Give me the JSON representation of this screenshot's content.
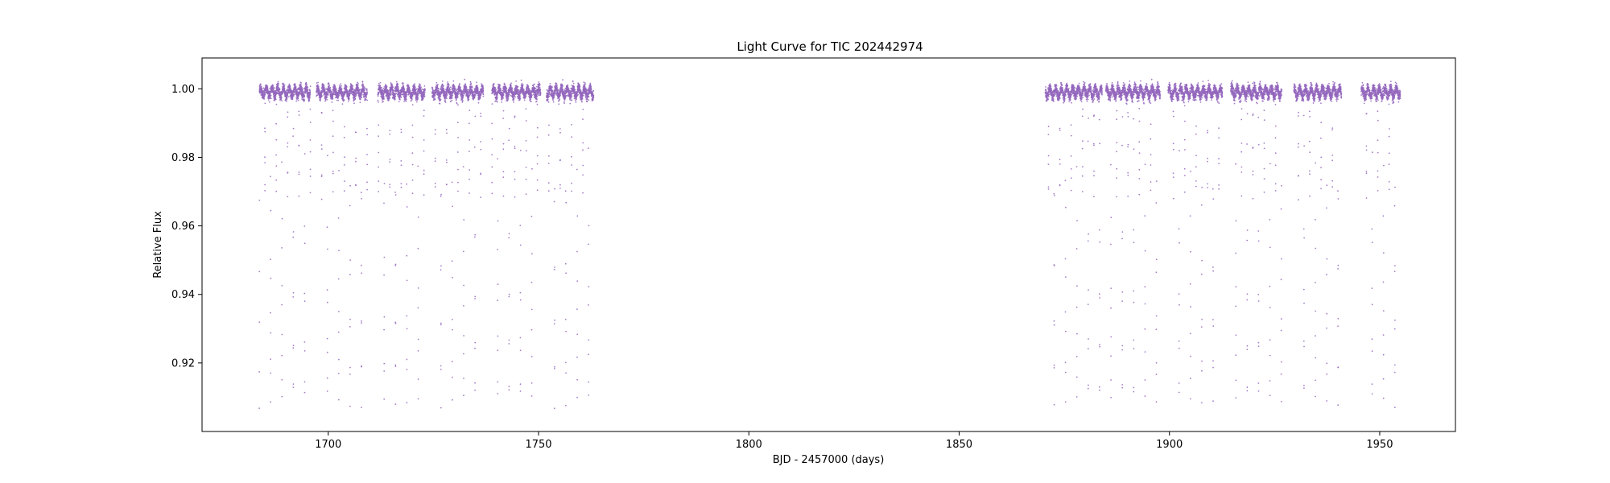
{
  "chart_data": {
    "type": "scatter",
    "title": "Light Curve for TIC 202442974",
    "xlabel": "BJD - 2457000 (days)",
    "ylabel": "Relative Flux",
    "xlim": [
      1670,
      1968
    ],
    "ylim": [
      0.9,
      1.009
    ],
    "xticks": [
      1700,
      1750,
      1800,
      1850,
      1900,
      1950
    ],
    "xtick_labels": [
      "1700",
      "1750",
      "1800",
      "1850",
      "1900",
      "1950"
    ],
    "yticks": [
      0.92,
      0.94,
      0.96,
      0.98,
      1.0
    ],
    "ytick_labels": [
      "0.92",
      "0.94",
      "0.96",
      "0.98",
      "1.00"
    ],
    "grid": false,
    "point_color": "#9467bd",
    "baseline_flux": 1.0,
    "eclipse_depth_flux": 0.907,
    "secondary_floor_flux": 0.968,
    "eclipse_period_days": 2.7,
    "observing_segments": [
      [
        1683.4,
        1695.8
      ],
      [
        1697.2,
        1709.3
      ],
      [
        1711.8,
        1723.0
      ],
      [
        1724.7,
        1736.9
      ],
      [
        1738.9,
        1750.5
      ],
      [
        1751.9,
        1763.1
      ],
      [
        1870.5,
        1884.0
      ],
      [
        1884.9,
        1897.8
      ],
      [
        1899.7,
        1912.6
      ],
      [
        1914.6,
        1926.7
      ],
      [
        1929.6,
        1940.9
      ],
      [
        1945.6,
        1954.9
      ]
    ]
  }
}
